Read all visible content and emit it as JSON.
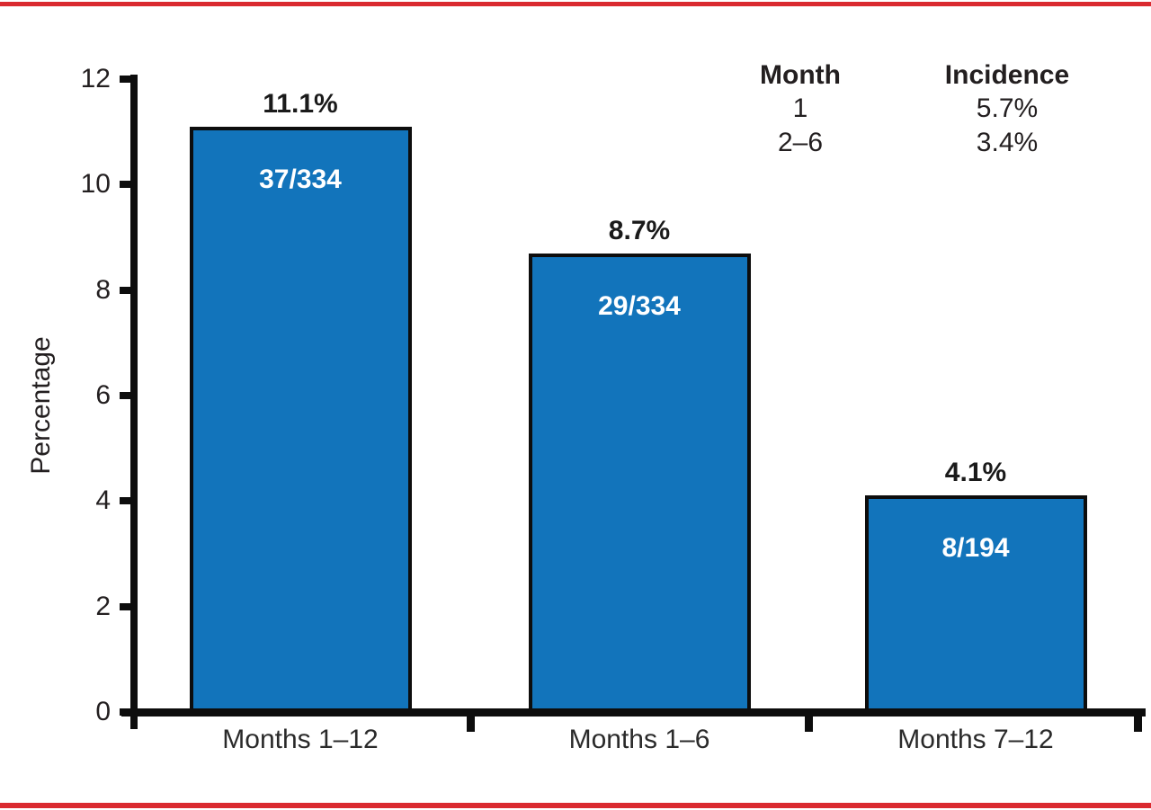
{
  "page": {
    "background": "#ffffff",
    "rule_color": "#da2a30"
  },
  "chart_data": {
    "type": "bar",
    "title": "",
    "xlabel": "",
    "ylabel": "Percentage",
    "ylim": [
      0,
      12
    ],
    "yticks": [
      "0",
      "2",
      "4",
      "6",
      "8",
      "10",
      "12"
    ],
    "grid": false,
    "legend_position": "top-right",
    "bar_color": "#1274bb",
    "bar_border_color": "#0d0d0d",
    "categories": [
      "Months 1–12",
      "Months 1–6",
      "Months 7–12"
    ],
    "values": [
      11.1,
      8.7,
      4.1
    ],
    "bar_labels": [
      {
        "percent": "11.1%",
        "fraction": "37/334"
      },
      {
        "percent": "8.7%",
        "fraction": "29/334"
      },
      {
        "percent": "4.1%",
        "fraction": "8/194"
      }
    ],
    "legend_table": {
      "headers": [
        "Month",
        "Incidence"
      ],
      "rows": [
        [
          "1",
          "5.7%"
        ],
        [
          "2–6",
          "3.4%"
        ]
      ]
    }
  }
}
